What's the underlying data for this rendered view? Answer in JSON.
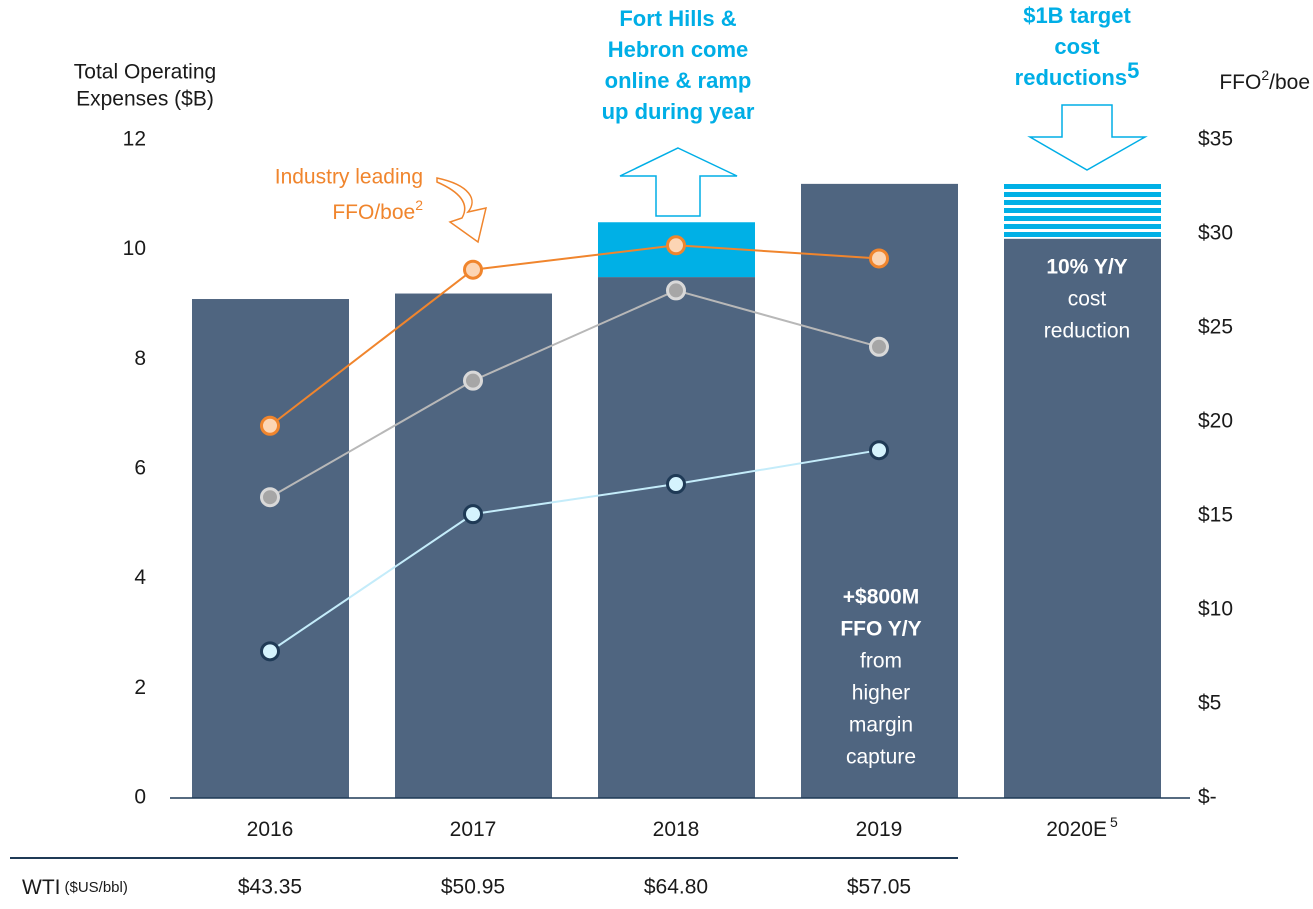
{
  "chart_data": {
    "type": "bar",
    "y_axis_title": [
      "Total Operating",
      "Expenses ($B)"
    ],
    "y2_axis_title": {
      "text": "FFO",
      "sup": "2",
      "suffix": "/boe"
    },
    "categories": [
      "2016",
      "2017",
      "2018",
      "2019",
      "2020E"
    ],
    "category_footnote": {
      "index": 4,
      "text": "5"
    },
    "ylim": [
      0,
      12
    ],
    "yticks": [
      0,
      2,
      4,
      6,
      8,
      10,
      12
    ],
    "y2lim": [
      0,
      35
    ],
    "y2ticks": [
      {
        "value": 0,
        "label": "$-"
      },
      {
        "value": 5,
        "label": "$5"
      },
      {
        "value": 10,
        "label": "$10"
      },
      {
        "value": 15,
        "label": "$15"
      },
      {
        "value": 20,
        "label": "$20"
      },
      {
        "value": 25,
        "label": "$25"
      },
      {
        "value": 30,
        "label": "$30"
      },
      {
        "value": 35,
        "label": "$35"
      }
    ],
    "bars": [
      {
        "color": "#4f6580",
        "values": [
          9.1,
          9.2,
          9.5,
          11.2,
          10.2
        ]
      },
      {
        "color": "#00b0e6",
        "values": [
          null,
          null,
          1.0,
          null,
          1.0
        ],
        "striped": [
          false,
          false,
          false,
          false,
          true
        ]
      }
    ],
    "series": [
      {
        "color": "#f0852d",
        "marker_fill": "#fcd5b4",
        "marker_stroke": "#f0852d",
        "axis": "y2",
        "values": [
          19.8,
          28.1,
          29.4,
          28.7,
          null
        ]
      },
      {
        "color": "#b8b8b8",
        "marker_fill": "#a6a6a6",
        "marker_stroke": "#d9d9d9",
        "axis": "y2",
        "values": [
          16.0,
          22.2,
          27.0,
          24.0,
          null
        ]
      },
      {
        "color": "#c4ecfa",
        "marker_fill": "#d5f3fd",
        "marker_stroke": "#1f3a56",
        "axis": "y2",
        "values": [
          7.8,
          15.1,
          16.7,
          18.5,
          null
        ]
      }
    ],
    "annotations": {
      "industry": {
        "lines": [
          "Industry leading",
          "FFO/boe"
        ],
        "sup": "2"
      },
      "fort_hills": [
        "Fort Hills &",
        "Hebron come",
        "online & ramp",
        "up during year"
      ],
      "target": {
        "lines": [
          "$1B target",
          "cost",
          "reductions"
        ],
        "sup": "5"
      },
      "reduction": [
        "10% Y/Y",
        "cost",
        "reduction"
      ],
      "margin": [
        "+$800M",
        "FFO Y/Y",
        "from",
        "higher",
        "margin",
        "capture"
      ]
    },
    "wti": {
      "label": "WTI",
      "unit": "($US/bbl)",
      "values": [
        "$43.35",
        "$50.95",
        "$64.80",
        "$57.05"
      ]
    }
  }
}
